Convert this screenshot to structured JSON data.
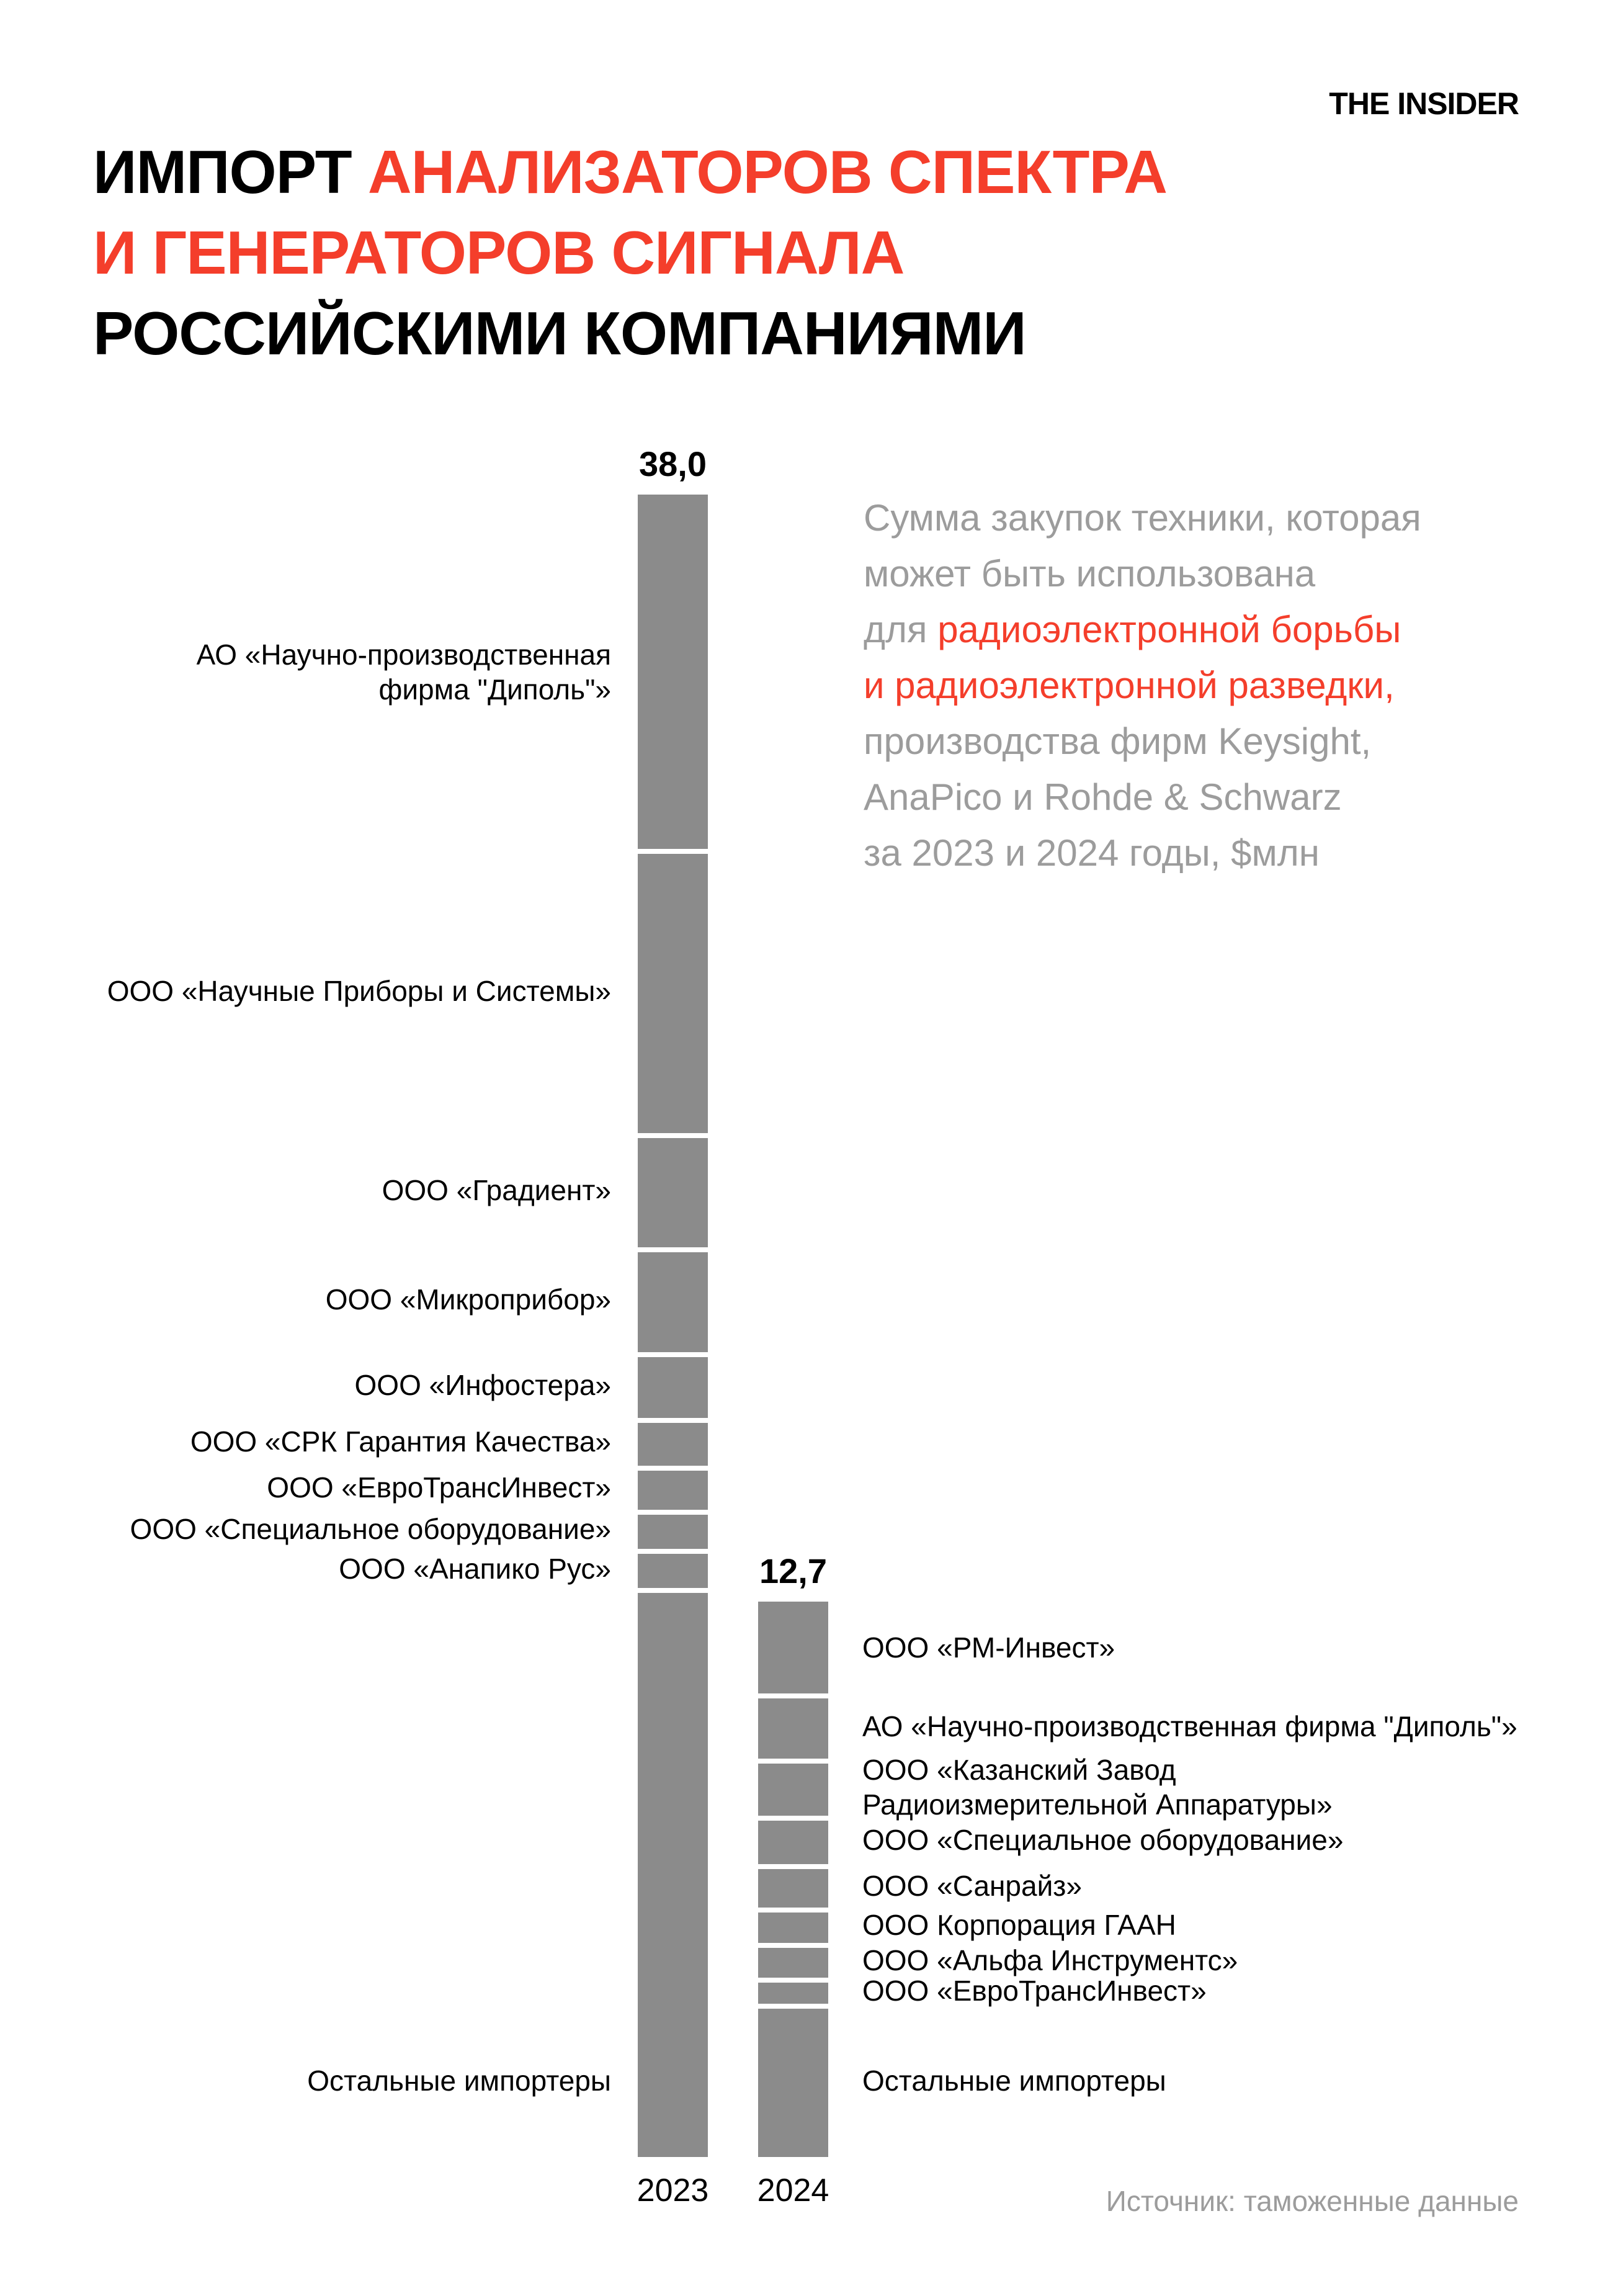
{
  "page": {
    "logo": "THE INSIDER",
    "source_note": "Источник: таможенные данные",
    "background": "#ffffff"
  },
  "colors": {
    "accent_red": "#f43e2b",
    "bar_gray": "#8b8b8b",
    "muted_gray": "#9c9c9c",
    "text_black": "#000000"
  },
  "title": {
    "lines": [
      [
        {
          "text": "ИМПОРТ ",
          "color": "black"
        },
        {
          "text": "АНАЛИЗАТОРОВ СПЕКТРА",
          "color": "red"
        }
      ],
      [
        {
          "text": "И ГЕНЕРАТОРОВ СИГНАЛА",
          "color": "red"
        }
      ],
      [
        {
          "text": "РОССИЙСКИМИ КОМПАНИЯМИ",
          "color": "black"
        }
      ]
    ]
  },
  "subtitle": {
    "lines": [
      [
        {
          "text": "Сумма закупок техники, которая",
          "color": "gray"
        }
      ],
      [
        {
          "text": "может быть использована",
          "color": "gray"
        }
      ],
      [
        {
          "text": "для ",
          "color": "gray"
        },
        {
          "text": "радиоэлектронной борьбы",
          "color": "red"
        }
      ],
      [
        {
          "text": "и радиоэлектронной разведки,",
          "color": "red"
        }
      ],
      [
        {
          "text": "производства фирм Keysight,",
          "color": "gray"
        }
      ],
      [
        {
          "text": "AnaPico и Rohde & Schwarz",
          "color": "gray"
        }
      ],
      [
        {
          "text": "за 2023 и 2024 годы, $млн",
          "color": "gray"
        }
      ]
    ]
  },
  "chart_data": {
    "type": "bar",
    "stacked": true,
    "title": "Импорт анализаторов спектра и генераторов сигнала российскими компаниями",
    "value_unit": "$млн",
    "value_axis_visible": false,
    "gridlines": false,
    "legend": "none",
    "categories": [
      "2023",
      "2024"
    ],
    "bars": [
      {
        "category": "2023",
        "total": 38.0,
        "total_label": "38,0",
        "label_side": "left",
        "segments": [
          {
            "label": "АО «Научно-производственная\nфирма \"Диполь\"»",
            "value": 8.1
          },
          {
            "label": "ООО «Научные Приборы и Системы»",
            "value": 6.5
          },
          {
            "label": "ООО «Градиент»",
            "value": 2.6
          },
          {
            "label": "ООО «Микроприбор»",
            "value": 2.4
          },
          {
            "label": "ООО «Инфостера»",
            "value": 1.5
          },
          {
            "label": "ООО «СРК Гарантия Качества»",
            "value": 1.1
          },
          {
            "label": "ООО «ЕвроТрансИнвест»",
            "value": 1.0
          },
          {
            "label": "ООО «Специальное оборудование»",
            "value": 0.9
          },
          {
            "label": "ООО «Анапико Рус»",
            "value": 0.9
          },
          {
            "label": "Остальные импортеры",
            "value": 13.0
          }
        ]
      },
      {
        "category": "2024",
        "total": 12.7,
        "total_label": "12,7",
        "label_side": "right",
        "segments": [
          {
            "label": "ООО «РМ-Инвест»",
            "value": 2.1
          },
          {
            "label": "АО «Научно-производственная фирма \"Диполь\"»",
            "value": 1.5
          },
          {
            "label": "ООО «Казанский Завод\nРадиоизмерительной Аппаратуры»",
            "value": 1.3
          },
          {
            "label": "ООО «Специальное оборудование»",
            "value": 1.1
          },
          {
            "label": "ООО «Санрайз»",
            "value": 1.0
          },
          {
            "label": "ООО Корпорация ГААН",
            "value": 0.8
          },
          {
            "label": "ООО «Альфа Инструментс»",
            "value": 0.8
          },
          {
            "label": "ООО «ЕвроТрансИнвест»",
            "value": 0.6
          },
          {
            "label": "Остальные импортеры",
            "value": 3.5
          }
        ]
      }
    ]
  }
}
